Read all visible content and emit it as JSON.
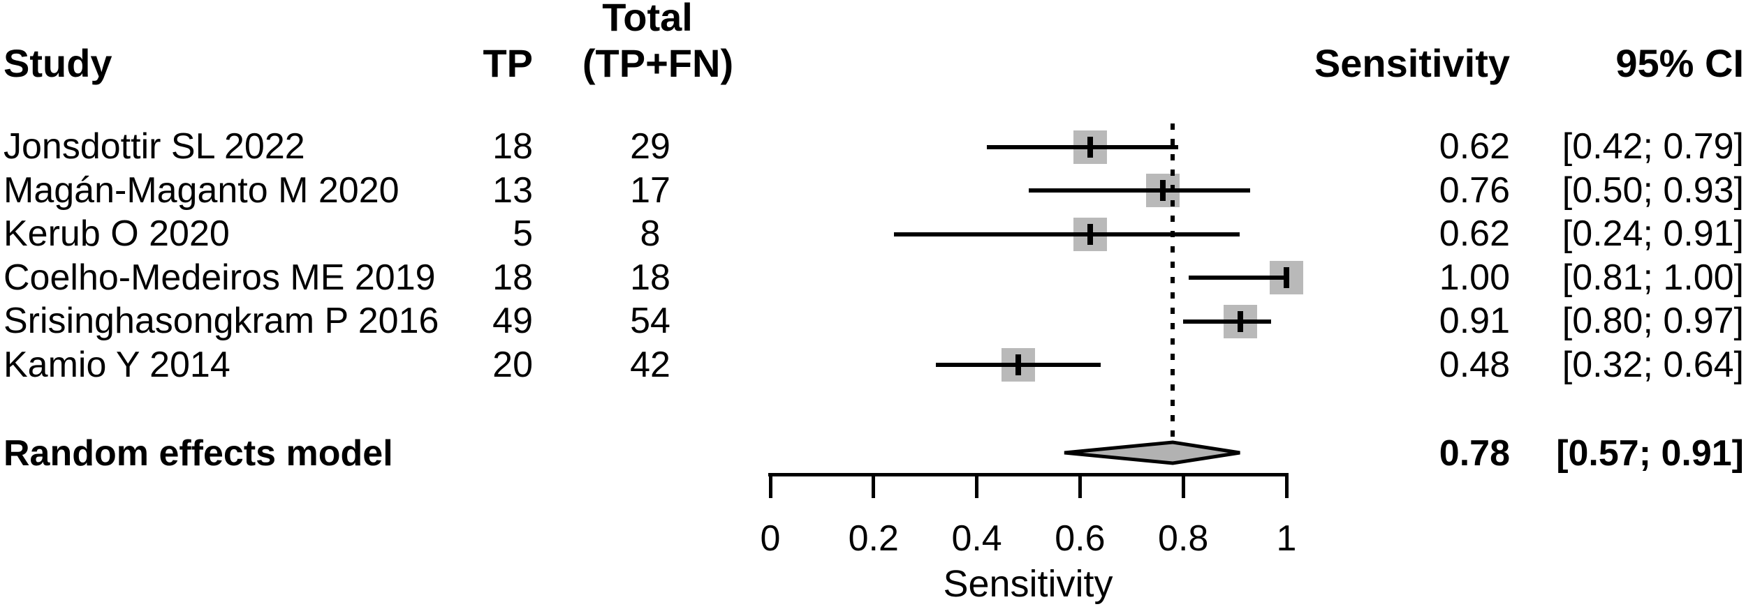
{
  "table": {
    "headers": {
      "study": "Study",
      "tp": "TP",
      "total_line1": "Total",
      "total_line2": "(TP+FN)",
      "sensitivity": "Sensitivity",
      "ci": "95% CI"
    }
  },
  "rows": [
    {
      "study": "Jonsdottir SL 2022",
      "tp": "18",
      "total": "29",
      "sensitivity": "0.62",
      "ci": "[0.42; 0.79]",
      "est": 0.62,
      "lo": 0.42,
      "hi": 0.79
    },
    {
      "study": "Magán-Maganto M 2020",
      "tp": "13",
      "total": "17",
      "sensitivity": "0.76",
      "ci": "[0.50; 0.93]",
      "est": 0.76,
      "lo": 0.5,
      "hi": 0.93
    },
    {
      "study": "Kerub O 2020",
      "tp": "5",
      "total": "8",
      "sensitivity": "0.62",
      "ci": "[0.24; 0.91]",
      "est": 0.62,
      "lo": 0.24,
      "hi": 0.91
    },
    {
      "study": "Coelho-Medeiros ME 2019",
      "tp": "18",
      "total": "18",
      "sensitivity": "1.00",
      "ci": "[0.81; 1.00]",
      "est": 1.0,
      "lo": 0.81,
      "hi": 1.0
    },
    {
      "study": "Srisinghasongkram P 2016",
      "tp": "49",
      "total": "54",
      "sensitivity": "0.91",
      "ci": "[0.80; 0.97]",
      "est": 0.91,
      "lo": 0.8,
      "hi": 0.97
    },
    {
      "study": "Kamio Y 2014",
      "tp": "20",
      "total": "42",
      "sensitivity": "0.48",
      "ci": "[0.32; 0.64]",
      "est": 0.48,
      "lo": 0.32,
      "hi": 0.64
    }
  ],
  "pooled": {
    "label": "Random effects model",
    "sensitivity": "0.78",
    "ci": "[0.57; 0.91]",
    "est": 0.78,
    "lo": 0.57,
    "hi": 0.91
  },
  "axis": {
    "label": "Sensitivity",
    "tick_labels": [
      "0",
      "0.2",
      "0.4",
      "0.6",
      "0.8",
      "1"
    ],
    "tick_values": [
      0,
      0.2,
      0.4,
      0.6,
      0.8,
      1
    ]
  },
  "colors": {
    "square": "#b9b9b9",
    "diamond_fill": "#b2b2b2",
    "line": "#000000",
    "text": "#000000",
    "background": "#ffffff"
  },
  "chart_data": {
    "type": "scatter",
    "subtype": "forest-plot",
    "title": "",
    "xlabel": "Sensitivity",
    "xlim": [
      0,
      1
    ],
    "xticks": [
      0,
      0.2,
      0.4,
      0.6,
      0.8,
      1
    ],
    "grid": false,
    "categories": [
      "Jonsdottir SL 2022",
      "Magán-Maganto M 2020",
      "Kerub O 2020",
      "Coelho-Medeiros ME 2019",
      "Srisinghasongkram P 2016",
      "Kamio Y 2014"
    ],
    "series": [
      {
        "name": "TP",
        "values": [
          18,
          13,
          5,
          18,
          49,
          20
        ]
      },
      {
        "name": "Total (TP+FN)",
        "values": [
          29,
          17,
          8,
          18,
          54,
          42
        ]
      },
      {
        "name": "Sensitivity",
        "values": [
          0.62,
          0.76,
          0.62,
          1.0,
          0.91,
          0.48
        ]
      },
      {
        "name": "CI lower",
        "values": [
          0.42,
          0.5,
          0.24,
          0.81,
          0.8,
          0.32
        ]
      },
      {
        "name": "CI upper",
        "values": [
          0.79,
          0.93,
          0.91,
          1.0,
          0.97,
          0.64
        ]
      }
    ],
    "pooled": {
      "model": "Random effects model",
      "estimate": 0.78,
      "ci_lower": 0.57,
      "ci_upper": 0.91,
      "reference_line": 0.78
    },
    "legend_position": "none"
  }
}
